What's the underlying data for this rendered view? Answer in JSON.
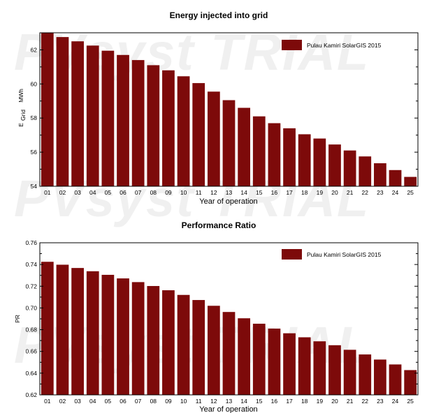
{
  "watermark": "PVsyst TRIAL",
  "colors": {
    "bar": "#7d0a0a",
    "axis": "#000000",
    "watermark": "#f0f0f0"
  },
  "chart_data": [
    {
      "type": "bar",
      "title": "Energy injected into grid",
      "xlabel": "Year of operation",
      "ylabel": {
        "main": "E",
        "sub": "Grid",
        "unit": "MWh"
      },
      "ylim": [
        54,
        63
      ],
      "yticks": [
        54,
        56,
        58,
        60,
        62
      ],
      "ytick_labels": [
        "54",
        "56",
        "58",
        "60",
        "62"
      ],
      "grid": false,
      "legend": {
        "label": "Pulau Kamiri SolarGIS 2015",
        "position": "top-right"
      },
      "categories": [
        "01",
        "02",
        "03",
        "04",
        "05",
        "06",
        "07",
        "08",
        "09",
        "10",
        "11",
        "12",
        "13",
        "14",
        "15",
        "16",
        "17",
        "18",
        "19",
        "20",
        "21",
        "22",
        "23",
        "24",
        "25"
      ],
      "values": [
        63.0,
        62.75,
        62.5,
        62.25,
        61.95,
        61.7,
        61.4,
        61.1,
        60.8,
        60.45,
        60.05,
        59.55,
        59.05,
        58.6,
        58.1,
        57.7,
        57.4,
        57.05,
        56.8,
        56.45,
        56.1,
        55.75,
        55.35,
        54.95,
        54.55
      ]
    },
    {
      "type": "bar",
      "title": "Performance Ratio",
      "xlabel": "Year of operation",
      "ylabel": {
        "main": "PR",
        "sub": "",
        "unit": ""
      },
      "ylim": [
        0.62,
        0.76
      ],
      "yticks": [
        0.62,
        0.64,
        0.66,
        0.68,
        0.7,
        0.72,
        0.74,
        0.76
      ],
      "ytick_labels": [
        "0.62",
        "0.64",
        "0.66",
        "0.68",
        "0.70",
        "0.72",
        "0.74",
        "0.76"
      ],
      "grid": false,
      "legend": {
        "label": "Pulau Kamiri SolarGIS 2015",
        "position": "top-right"
      },
      "categories": [
        "01",
        "02",
        "03",
        "04",
        "05",
        "06",
        "07",
        "08",
        "09",
        "10",
        "11",
        "12",
        "13",
        "14",
        "15",
        "16",
        "17",
        "18",
        "19",
        "20",
        "21",
        "22",
        "23",
        "24",
        "25"
      ],
      "values": [
        0.7425,
        0.7398,
        0.7368,
        0.7338,
        0.7305,
        0.7272,
        0.7238,
        0.7202,
        0.7163,
        0.712,
        0.7073,
        0.702,
        0.6963,
        0.6905,
        0.6855,
        0.681,
        0.6767,
        0.673,
        0.6693,
        0.6657,
        0.6615,
        0.6572,
        0.6525,
        0.648,
        0.6428
      ]
    }
  ]
}
